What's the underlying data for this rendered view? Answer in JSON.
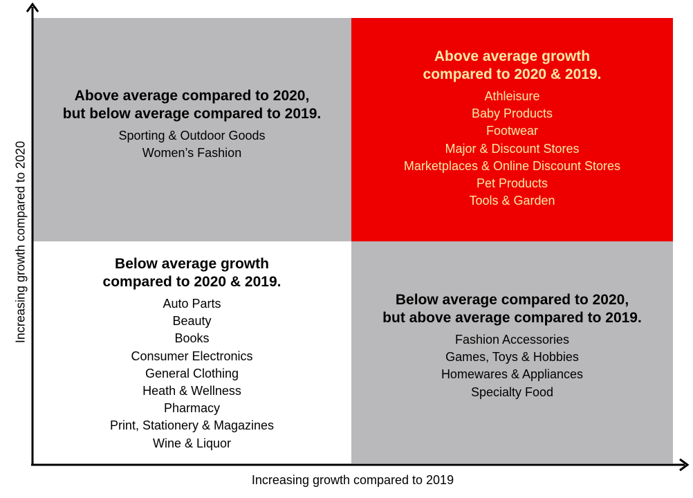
{
  "axes": {
    "x_label": "Increasing growth compared to 2019",
    "y_label": "Increasing growth compared to 2020"
  },
  "quadrants": {
    "top_left": {
      "heading": [
        "Above average compared to 2020,",
        "but below average compared to 2019."
      ],
      "items": [
        "Sporting & Outdoor Goods",
        "Women’s Fashion"
      ],
      "color": "#b9b9bb"
    },
    "top_right": {
      "heading": [
        "Above average growth",
        "compared to 2020 & 2019."
      ],
      "items": [
        "Athleisure",
        "Baby Products",
        "Footwear",
        "Major & Discount Stores",
        "Marketplaces & Online Discount Stores",
        "Pet Products",
        "Tools & Garden"
      ],
      "color": "#ee0000",
      "text_color": "#fbe9a6"
    },
    "bottom_left": {
      "heading": [
        "Below average growth",
        "compared to 2020 & 2019."
      ],
      "items": [
        "Auto Parts",
        "Beauty",
        "Books",
        "Consumer Electronics",
        "General Clothing",
        "Heath & Wellness",
        "Pharmacy",
        "Print, Stationery & Magazines",
        "Wine & Liquor"
      ],
      "color": "#ffffff"
    },
    "bottom_right": {
      "heading": [
        "Below average compared to 2020,",
        "but above average compared to 2019."
      ],
      "items": [
        "Fashion Accessories",
        "Games, Toys & Hobbies",
        "Homewares & Appliances",
        "Specialty Food"
      ],
      "color": "#b9b9bb"
    }
  }
}
